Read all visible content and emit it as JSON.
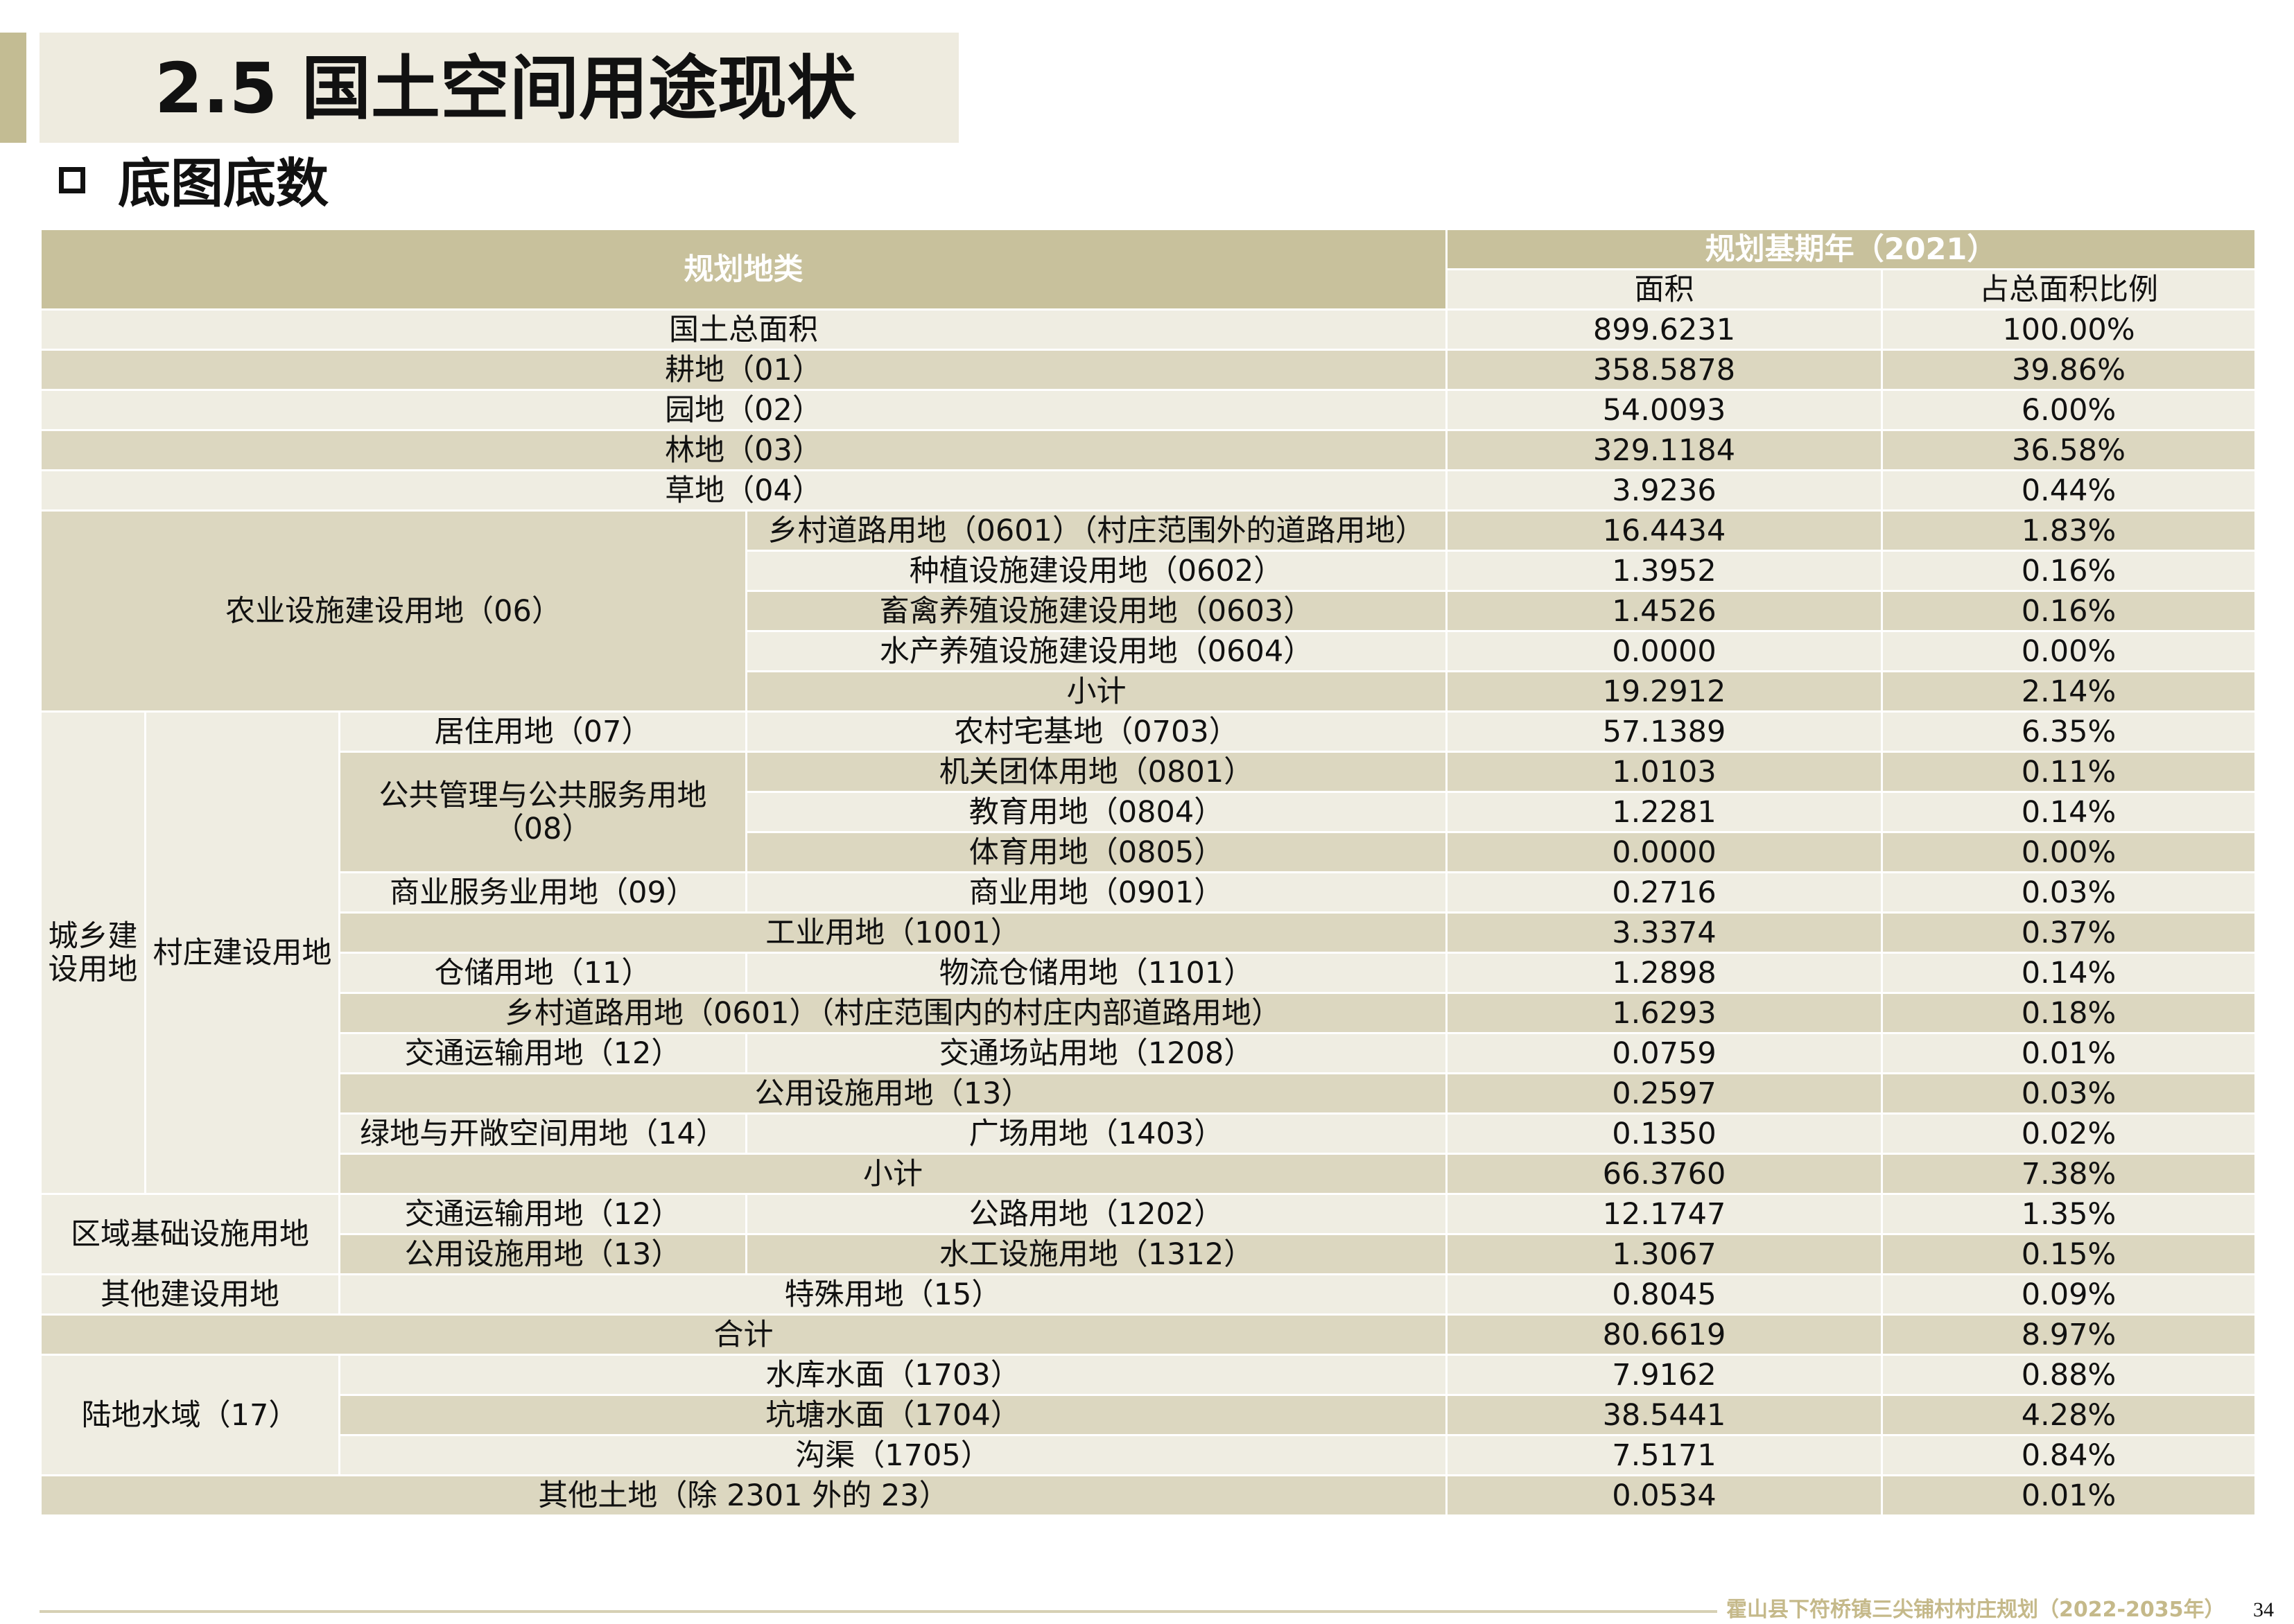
{
  "header": {
    "title": "2.5 国土空间用途现状",
    "subtitle": "底图底数"
  },
  "table": {
    "columns": {
      "category": "规划地类",
      "period": "规划基期年（2021）",
      "area": "面积",
      "ratio": "占总面积比例"
    },
    "rows": [
      [
        "国土总面积",
        "899.6231",
        "100.00%"
      ],
      [
        "耕地（01）",
        "358.5878",
        "39.86%"
      ],
      [
        "园地（02）",
        "54.0093",
        "6.00%"
      ],
      [
        "林地（03）",
        "329.1184",
        "36.58%"
      ],
      [
        "草地（04）",
        "3.9236",
        "0.44%"
      ],
      [
        "农业设施建设用地（06）",
        "乡村道路用地（0601）（村庄范围外的道路用地）",
        "16.4434",
        "1.83%"
      ],
      [
        "种植设施建设用地（0602）",
        "1.3952",
        "0.16%"
      ],
      [
        "畜禽养殖设施建设用地（0603）",
        "1.4526",
        "0.16%"
      ],
      [
        "水产养殖设施建设用地（0604）",
        "0.0000",
        "0.00%"
      ],
      [
        "小计",
        "19.2912",
        "2.14%"
      ],
      [
        "城乡建设用地",
        "村庄建设用地",
        "居住用地（07）",
        "农村宅基地（0703）",
        "57.1389",
        "6.35%"
      ],
      [
        "公共管理与公共服务用地（08）",
        "机关团体用地（0801）",
        "1.0103",
        "0.11%"
      ],
      [
        "教育用地（0804）",
        "1.2281",
        "0.14%"
      ],
      [
        "体育用地（0805）",
        "0.0000",
        "0.00%"
      ],
      [
        "商业服务业用地（09）",
        "商业用地（0901）",
        "0.2716",
        "0.03%"
      ],
      [
        "工业用地（1001）",
        "3.3374",
        "0.37%"
      ],
      [
        "仓储用地（11）",
        "物流仓储用地（1101）",
        "1.2898",
        "0.14%"
      ],
      [
        "乡村道路用地（0601）（村庄范围内的村庄内部道路用地）",
        "1.6293",
        "0.18%"
      ],
      [
        "交通运输用地（12）",
        "交通场站用地（1208）",
        "0.0759",
        "0.01%"
      ],
      [
        "公用设施用地（13）",
        "0.2597",
        "0.03%"
      ],
      [
        "绿地与开敞空间用地（14）",
        "广场用地（1403）",
        "0.1350",
        "0.02%"
      ],
      [
        "小计",
        "66.3760",
        "7.38%"
      ],
      [
        "区域基础设施用地",
        "交通运输用地（12）",
        "公路用地（1202）",
        "12.1747",
        "1.35%"
      ],
      [
        "公用设施用地（13）",
        "水工设施用地（1312）",
        "1.3067",
        "0.15%"
      ],
      [
        "其他建设用地",
        "特殊用地（15）",
        "0.8045",
        "0.09%"
      ],
      [
        "合计",
        "80.6619",
        "8.97%"
      ],
      [
        "陆地水域（17）",
        "水库水面（1703）",
        "7.9162",
        "0.88%"
      ],
      [
        "坑塘水面（1704）",
        "38.5441",
        "4.28%"
      ],
      [
        "沟渠（1705）",
        "7.5171",
        "0.84%"
      ],
      [
        "其他土地（除 2301 外的 23）",
        "0.0534",
        "0.01%"
      ]
    ]
  },
  "footer": {
    "project": "霍山县下符桥镇三尖铺村村庄规划（2022-2035年）",
    "page": "34"
  }
}
